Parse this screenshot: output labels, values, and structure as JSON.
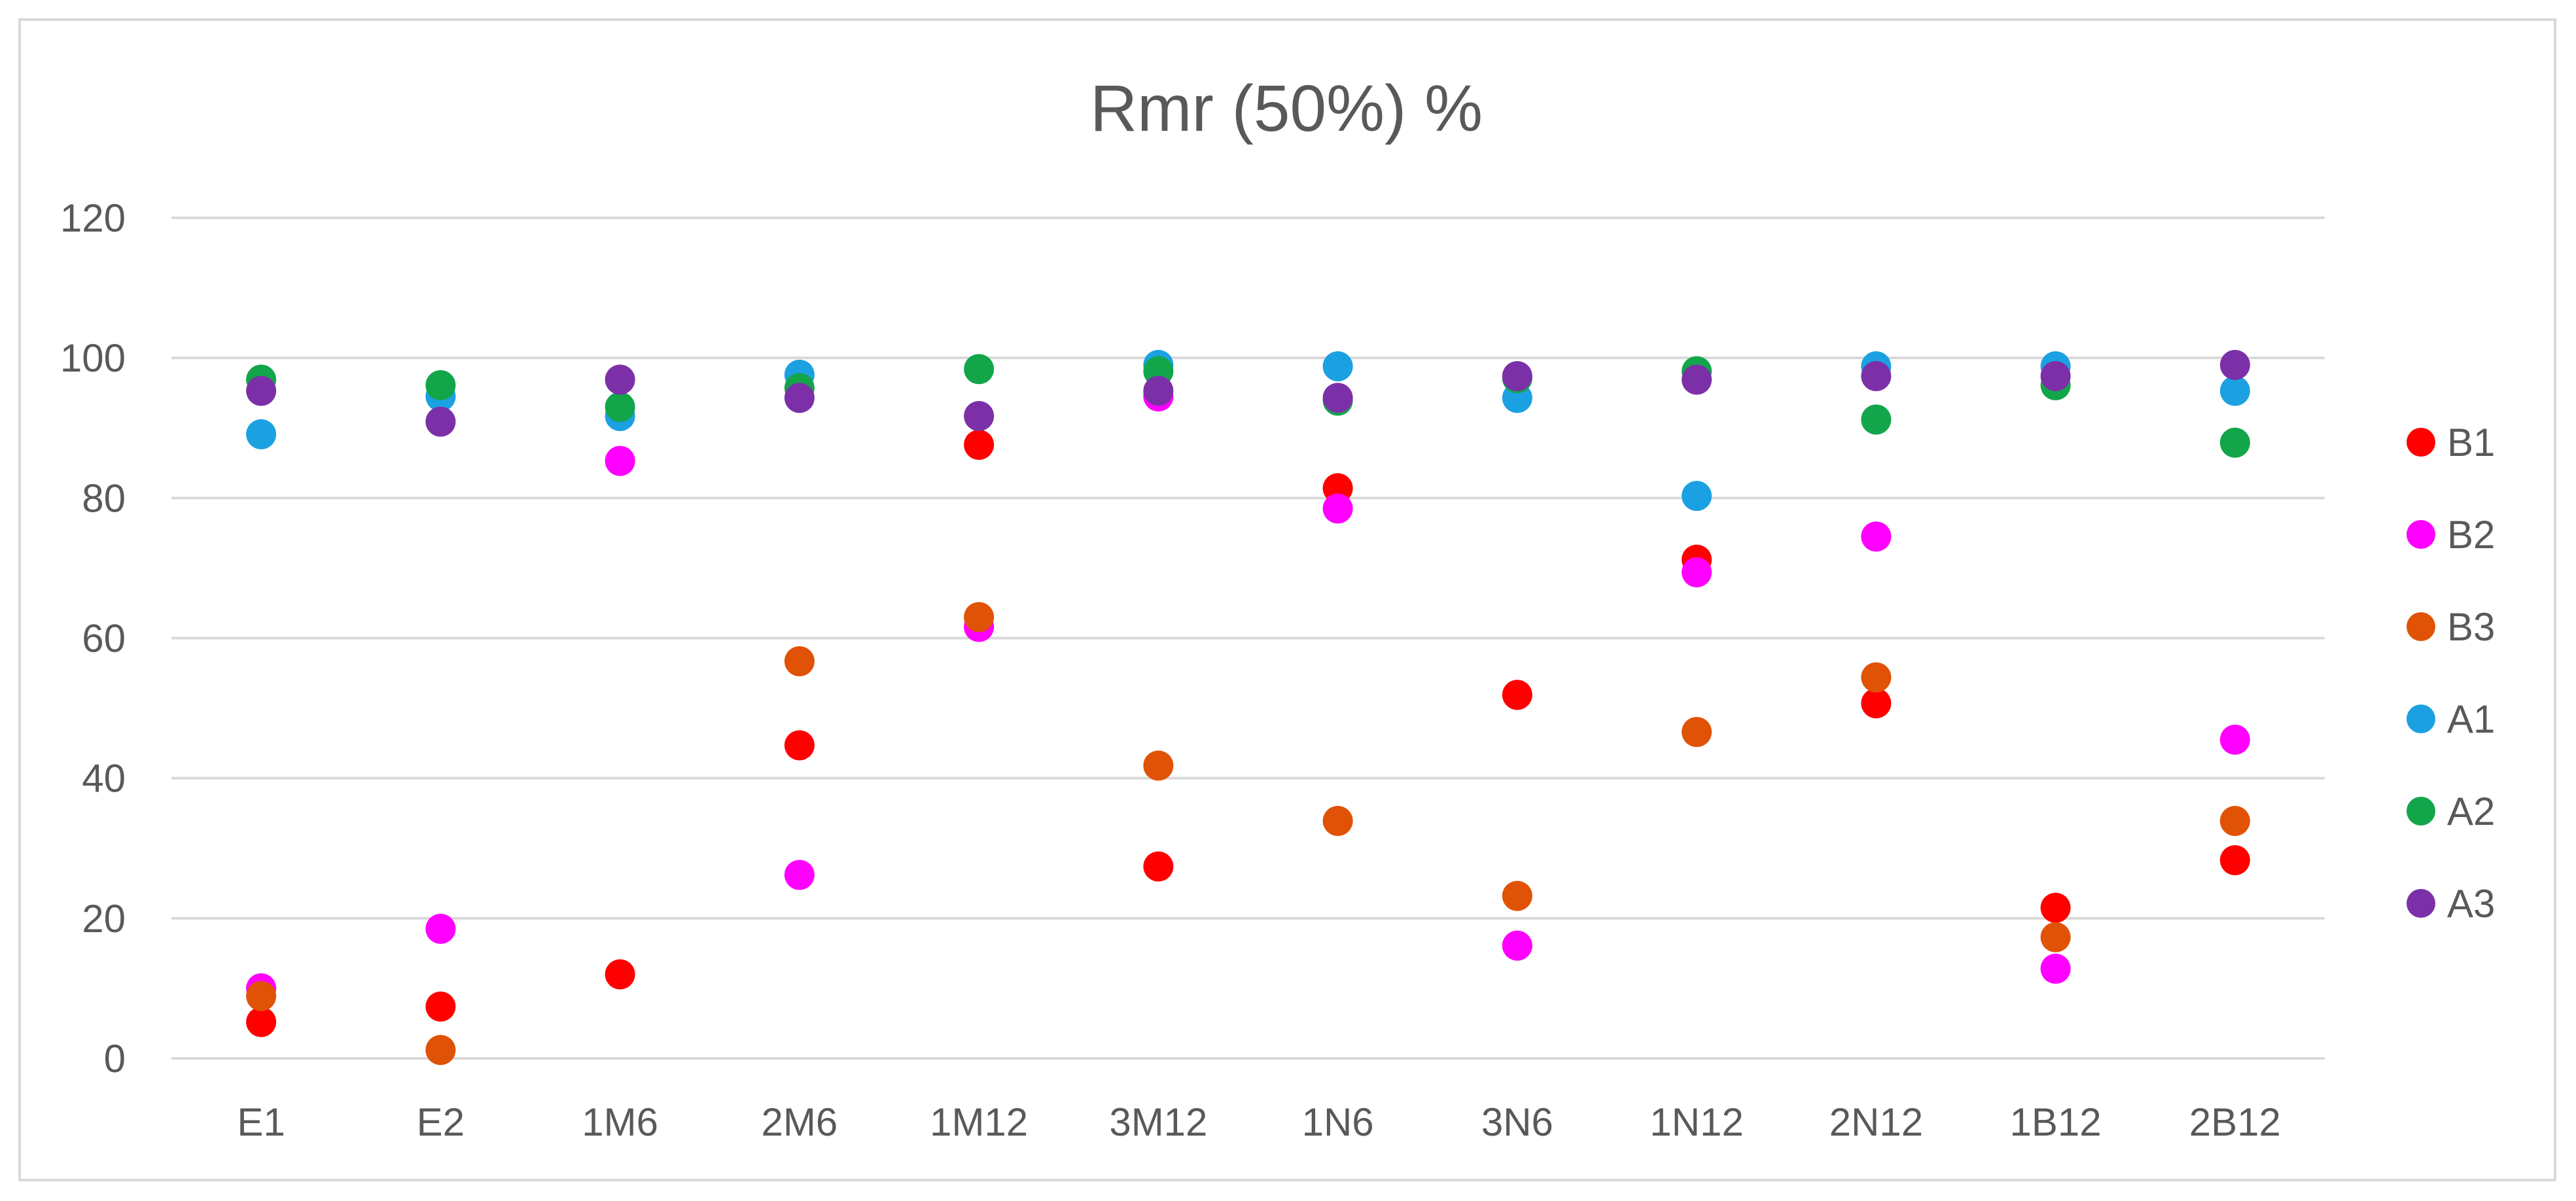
{
  "chart_data": {
    "type": "scatter",
    "title": "Rmr (50%)  %",
    "xlabel": "",
    "ylabel": "",
    "categories": [
      "E1",
      "E2",
      "1M6",
      "2M6",
      "1M12",
      "3M12",
      "1N6",
      "3N6",
      "1N12",
      "2N12",
      "1B12",
      "2B12"
    ],
    "ylim": [
      0,
      120
    ],
    "yticks": [
      0,
      20,
      40,
      60,
      80,
      100,
      120
    ],
    "grid": "horizontal",
    "legend_position": "right",
    "series": [
      {
        "name": "B1",
        "color": "#ff0000",
        "values": [
          5.2,
          7.4,
          12.0,
          44.7,
          87.6,
          27.4,
          81.4,
          51.9,
          71.2,
          50.7,
          21.5,
          28.3
        ]
      },
      {
        "name": "B2",
        "color": "#ff00ff",
        "values": [
          10.0,
          18.5,
          85.3,
          26.2,
          61.6,
          94.5,
          78.5,
          16.1,
          69.4,
          74.5,
          12.8,
          45.5
        ]
      },
      {
        "name": "B3",
        "color": "#e05206",
        "values": [
          8.9,
          1.2,
          null,
          56.7,
          63.0,
          41.8,
          33.9,
          23.2,
          46.6,
          54.4,
          17.3,
          33.9
        ]
      },
      {
        "name": "A1",
        "color": "#1ba1e2",
        "values": [
          89.1,
          94.5,
          91.7,
          97.6,
          null,
          99.0,
          98.8,
          94.3,
          80.3,
          98.8,
          98.8,
          95.3
        ]
      },
      {
        "name": "A2",
        "color": "#13a54a",
        "values": [
          96.9,
          96.1,
          93.0,
          95.7,
          98.4,
          98.1,
          93.9,
          97.1,
          98.1,
          91.2,
          96.1,
          87.9
        ]
      },
      {
        "name": "A3",
        "color": "#7c30a8",
        "values": [
          95.3,
          90.9,
          96.9,
          94.3,
          91.7,
          95.3,
          94.3,
          97.4,
          96.9,
          97.4,
          97.4,
          99.0
        ]
      }
    ]
  }
}
